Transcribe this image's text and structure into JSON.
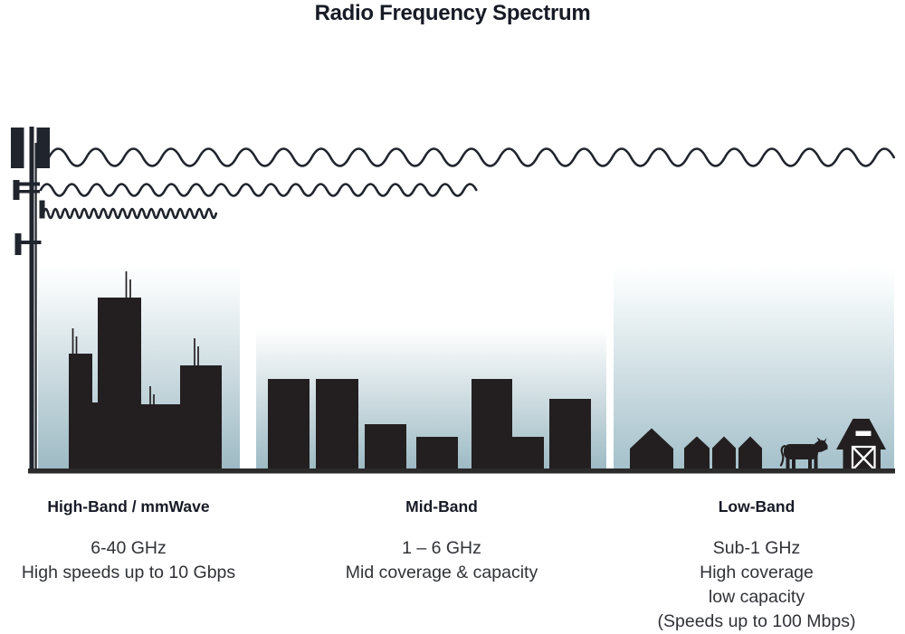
{
  "title": "Radio Frequency Spectrum",
  "colors": {
    "ink": "#20242c",
    "silhouette": "#231f20",
    "title_ink": "#171b26",
    "text": "#303236",
    "sky_bottom": "#9cb9c3",
    "sky_bottom_low": "#a4c0ca",
    "ground": "#2b2b2b"
  },
  "bands": [
    {
      "id": "high-band",
      "label": "High-Band / mmWave",
      "lines": [
        "6-40 GHz",
        "High speeds up to 10 Gbps"
      ]
    },
    {
      "id": "mid-band",
      "label": "Mid-Band",
      "lines": [
        "1 – 6 GHz",
        "Mid coverage & capacity"
      ]
    },
    {
      "id": "low-band",
      "label": "Low-Band",
      "lines": [
        "Sub-1 GHz",
        "High coverage",
        "low capacity",
        "(Speeds up to 100 Mbps)"
      ]
    }
  ],
  "scene": {
    "transmitter": "cell-tower",
    "waves": [
      {
        "wavelength": "long",
        "reach": "longest (spans all three zones)"
      },
      {
        "wavelength": "medium",
        "reach": "medium (spans city and mid zone)"
      },
      {
        "wavelength": "short",
        "reach": "shortest (city zone only)"
      }
    ],
    "zones": [
      "dense city skyline with rooftop antennas",
      "mid-rise buildings",
      "rural houses, cow and barn"
    ]
  }
}
